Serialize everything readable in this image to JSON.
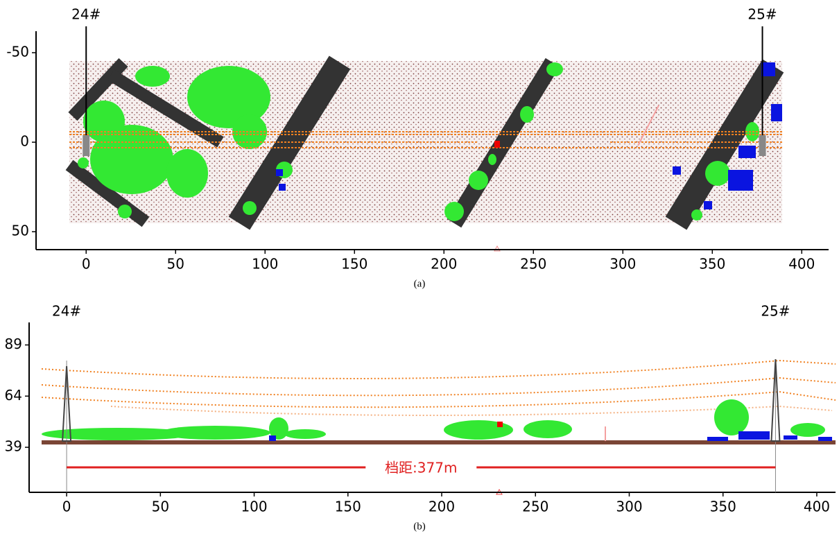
{
  "chart_data": [
    {
      "type": "plan",
      "xlim": [
        -28,
        415
      ],
      "xticks": [
        0,
        50,
        100,
        150,
        200,
        250,
        300,
        350,
        400
      ],
      "ylim": [
        60,
        -62
      ],
      "yticks": [
        -50,
        0,
        50
      ],
      "towers": [
        {
          "label": "24#",
          "x": 0
        },
        {
          "label": "25#",
          "x": 378
        }
      ],
      "caption": "(a)"
    },
    {
      "type": "profile",
      "xlim": [
        -20,
        410
      ],
      "xticks": [
        0,
        50,
        100,
        150,
        200,
        250,
        300,
        350,
        400
      ],
      "ylim": [
        17,
        100
      ],
      "yticks": [
        39,
        64,
        89
      ],
      "towers": [
        {
          "label": "24#",
          "x": 0
        },
        {
          "label": "25#",
          "x": 378
        }
      ],
      "span_label": "档距:377m",
      "caption": "(b)"
    }
  ]
}
